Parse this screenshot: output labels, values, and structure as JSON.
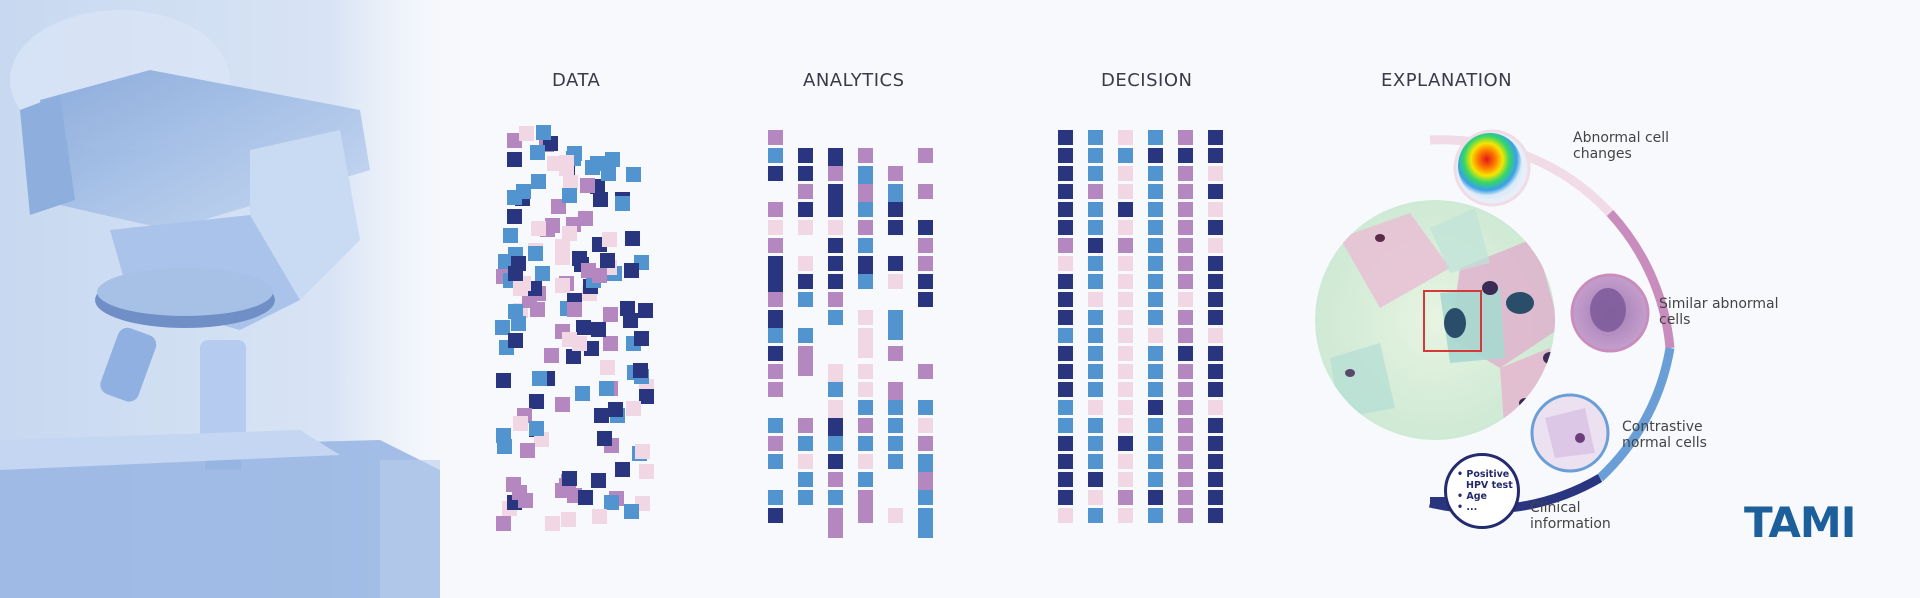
{
  "stages": [
    {
      "key": "data",
      "label": "DATA"
    },
    {
      "key": "analytics",
      "label": "ANALYTICS"
    },
    {
      "key": "decision",
      "label": "DECISION"
    },
    {
      "key": "explanation",
      "label": "EXPLANATION"
    }
  ],
  "explanation": {
    "callouts": {
      "abnormal_changes": [
        "Abnormal cell",
        "changes"
      ],
      "similar_abnormal": [
        "Similar abnormal",
        "cells"
      ],
      "contrastive_normal": [
        "Contrastive",
        "normal cells"
      ],
      "clinical_info": [
        "Clinical",
        "information"
      ]
    },
    "clinical_list": [
      "Positive",
      "HPV test",
      "Age",
      "..."
    ]
  },
  "logo": {
    "text": "TAMI"
  },
  "palette": {
    "navy": "#2a3580",
    "blue": "#5294cf",
    "mauve": "#b487c0",
    "pink": "#f1d6e4",
    "accent_red": "#d43a3a",
    "ring_pink": "#f0dbe6",
    "ring_mauve": "#c98dbd",
    "logo_blue": "#1d5f9a"
  },
  "icons": [
    "microscope-image",
    "heatmap-icon",
    "abnormal-cell-icon",
    "normal-cell-icon",
    "cytology-image"
  ]
}
